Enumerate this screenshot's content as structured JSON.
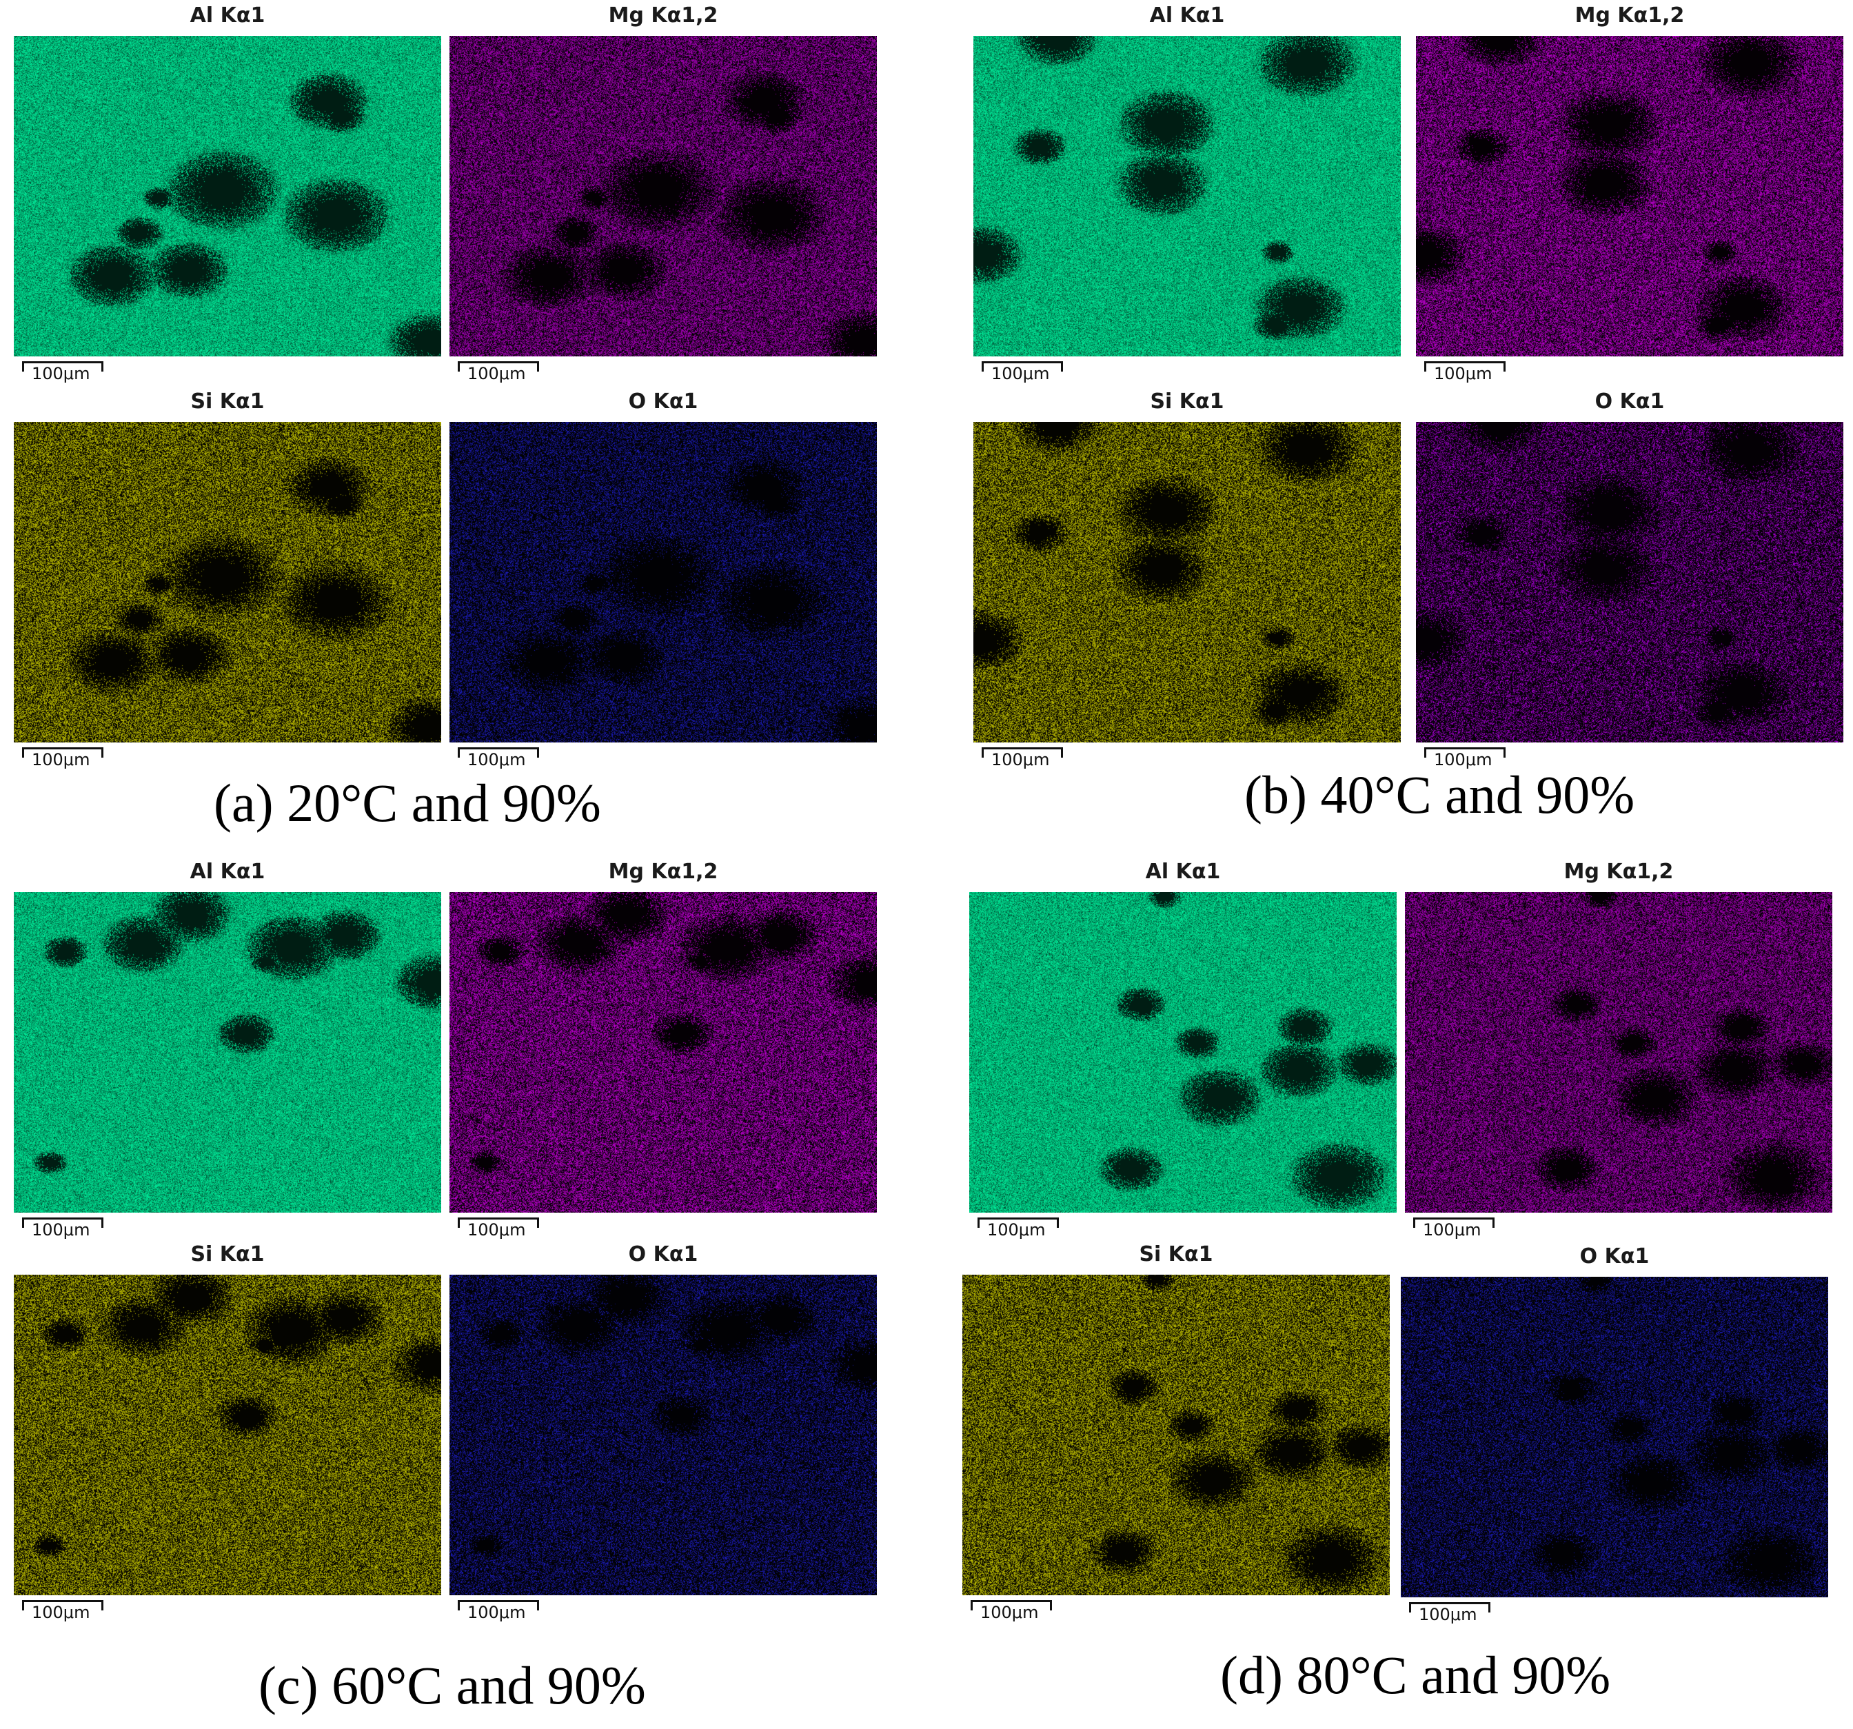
{
  "groups": [
    {
      "caption": "(a) 20°C and 90%",
      "panels": [
        {
          "label": "Al Kα1",
          "scale": "100μm",
          "color": "#00f5a0"
        },
        {
          "label": "Mg Kα1,2",
          "scale": "100μm",
          "color": "#b400c8"
        },
        {
          "label": "Si Kα1",
          "scale": "100μm",
          "color": "#c8c800"
        },
        {
          "label": "O Kα1",
          "scale": "100μm",
          "color": "#1e1ec8"
        }
      ]
    },
    {
      "caption": "(b) 40°C and 90%",
      "panels": [
        {
          "label": "Al Kα1",
          "scale": "100μm",
          "color": "#00f5a0"
        },
        {
          "label": "Mg Kα1,2",
          "scale": "100μm",
          "color": "#c800dc"
        },
        {
          "label": "Si Kα1",
          "scale": "100μm",
          "color": "#c8c800"
        },
        {
          "label": "O Kα1",
          "scale": "100μm",
          "color": "#b400e6"
        }
      ]
    },
    {
      "caption": "(c) 60°C and 90%",
      "panels": [
        {
          "label": "Al Kα1",
          "scale": "100μm",
          "color": "#00f5a0"
        },
        {
          "label": "Mg Kα1,2",
          "scale": "100μm",
          "color": "#c800dc"
        },
        {
          "label": "Si Kα1",
          "scale": "100μm",
          "color": "#c8c800"
        },
        {
          "label": "O Kα1",
          "scale": "100μm",
          "color": "#1e1ec8"
        }
      ]
    },
    {
      "caption": "(d) 80°C and 90%",
      "panels": [
        {
          "label": "Al Kα1",
          "scale": "100μm",
          "color": "#00f5a0"
        },
        {
          "label": "Mg Kα1,2",
          "scale": "100μm",
          "color": "#b400c8"
        },
        {
          "label": "Si Kα1",
          "scale": "100μm",
          "color": "#c8c800"
        },
        {
          "label": "O Kα1",
          "scale": "100μm",
          "color": "#1e1ec8"
        }
      ]
    }
  ]
}
